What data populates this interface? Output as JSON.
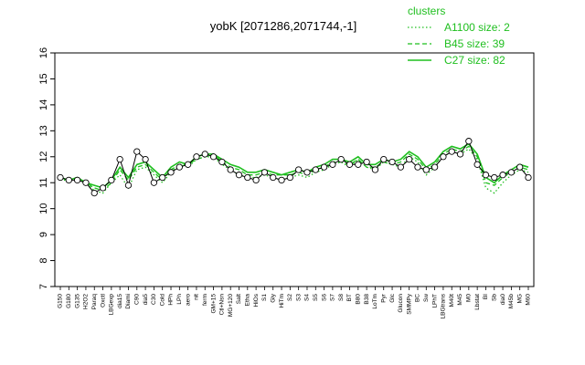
{
  "chart_data": {
    "type": "line",
    "title": "yobK [2071286,2071744,-1]",
    "xlabel": "",
    "ylabel": "",
    "ylim": [
      7,
      16
    ],
    "yticks": [
      7,
      8,
      9,
      10,
      11,
      12,
      13,
      14,
      15,
      16
    ],
    "x_tick_labels": [
      "G150",
      "G180",
      "G135",
      "H2O2",
      "Paraq",
      "Oxctl",
      "LBGexp",
      "dia15",
      "Diami",
      "C90",
      "dia5",
      "C30",
      "Cold",
      "HPh",
      "LPh",
      "aero",
      "nit",
      "ferm",
      "GM+15",
      "Ctl+Nsn",
      "MG+120",
      "Salt",
      "Etha",
      "HiOs",
      "S1",
      "Gly",
      "HiTm",
      "S2",
      "S3",
      "S4",
      "S5",
      "S6",
      "S7",
      "S8",
      "BT",
      "B80",
      "B38",
      "LoTm",
      "Pyr",
      "Glc",
      "Glucon",
      "SMMPy",
      "BC",
      "Sw",
      "LPhT",
      "LBGtrans",
      "M40t",
      "M45",
      "M0",
      "Lbstat",
      "BI",
      "Sb",
      "dia0",
      "M45b",
      "MG",
      "M60"
    ],
    "series": [
      {
        "name": "A1100",
        "style": "dotted",
        "color": "#1fbf1f",
        "values": [
          11.1,
          11.1,
          11.2,
          11.0,
          10.7,
          10.6,
          11.0,
          11.3,
          10.8,
          11.5,
          11.6,
          11.3,
          11.0,
          11.4,
          11.7,
          11.6,
          11.9,
          12.0,
          12.0,
          11.7,
          11.5,
          11.3,
          11.2,
          11.2,
          11.3,
          11.2,
          11.1,
          11.2,
          11.3,
          11.2,
          11.4,
          11.5,
          11.7,
          11.8,
          11.6,
          11.9,
          11.6,
          11.5,
          11.8,
          11.7,
          11.6,
          12.0,
          11.8,
          11.3,
          11.6,
          12.0,
          12.2,
          12.1,
          12.3,
          11.9,
          10.8,
          10.6,
          11.0,
          11.3,
          11.5,
          11.4
        ]
      },
      {
        "name": "B45",
        "style": "dashed",
        "color": "#1fbf1f",
        "values": [
          11.2,
          11.1,
          11.1,
          11.0,
          10.8,
          10.7,
          11.0,
          11.5,
          11.1,
          11.6,
          11.7,
          11.4,
          11.1,
          11.5,
          11.7,
          11.7,
          11.9,
          12.0,
          12.1,
          11.8,
          11.6,
          11.5,
          11.3,
          11.3,
          11.4,
          11.3,
          11.3,
          11.3,
          11.4,
          11.3,
          11.5,
          11.6,
          11.8,
          11.8,
          11.7,
          11.9,
          11.6,
          11.6,
          11.8,
          11.7,
          11.8,
          12.1,
          11.9,
          11.5,
          11.7,
          12.1,
          12.3,
          12.2,
          12.4,
          12.0,
          11.0,
          10.9,
          11.2,
          11.4,
          11.6,
          11.5
        ]
      },
      {
        "name": "C27",
        "style": "solid",
        "color": "#1fbf1f",
        "values": [
          11.2,
          11.1,
          11.2,
          11.0,
          10.9,
          10.8,
          11.1,
          11.6,
          11.2,
          11.7,
          11.8,
          11.5,
          11.2,
          11.6,
          11.8,
          11.7,
          12.0,
          12.1,
          12.1,
          11.9,
          11.7,
          11.6,
          11.4,
          11.4,
          11.5,
          11.4,
          11.3,
          11.4,
          11.5,
          11.4,
          11.6,
          11.7,
          11.9,
          11.9,
          11.8,
          12.0,
          11.7,
          11.7,
          11.9,
          11.8,
          11.9,
          12.2,
          12.0,
          11.6,
          11.8,
          12.2,
          12.4,
          12.3,
          12.5,
          12.1,
          11.2,
          11.0,
          11.3,
          11.5,
          11.7,
          11.6
        ]
      },
      {
        "name": "yobK",
        "style": "points",
        "color": "#000000",
        "values": [
          11.2,
          11.1,
          11.1,
          11.0,
          10.6,
          10.8,
          11.1,
          11.9,
          10.9,
          12.2,
          11.9,
          11.0,
          11.2,
          11.4,
          11.6,
          11.7,
          12.0,
          12.1,
          12.0,
          11.8,
          11.5,
          11.3,
          11.2,
          11.1,
          11.4,
          11.2,
          11.1,
          11.2,
          11.5,
          11.4,
          11.5,
          11.6,
          11.7,
          11.9,
          11.7,
          11.7,
          11.8,
          11.5,
          11.9,
          11.8,
          11.6,
          11.9,
          11.6,
          11.5,
          11.6,
          12.0,
          12.2,
          12.1,
          12.6,
          11.7,
          11.3,
          11.2,
          11.3,
          11.4,
          11.6,
          11.2
        ]
      }
    ],
    "legend": {
      "title": "clusters",
      "position": "top-right",
      "entries": [
        {
          "label": "A1100 size: 2",
          "style": "dotted"
        },
        {
          "label": "B45 size: 39",
          "style": "dashed"
        },
        {
          "label": "C27 size: 82",
          "style": "solid"
        }
      ]
    },
    "grid": false
  }
}
